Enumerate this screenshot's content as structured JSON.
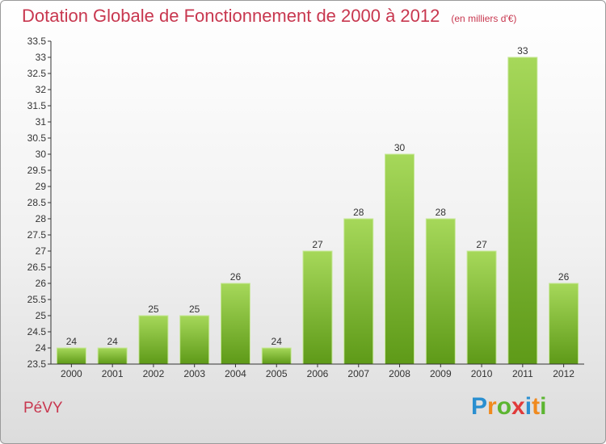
{
  "title": "Dotation Globale de Fonctionnement de 2000 à 2012",
  "subtitle": "(en milliers d'€)",
  "commune": "PéVY",
  "logo": {
    "letters": [
      "P",
      "r",
      "o",
      "x",
      "i",
      "t",
      "i"
    ],
    "colors": [
      "#2a8fd0",
      "#f08a1e",
      "#5cb531",
      "#e03a3a",
      "#2a8fd0",
      "#f08a1e",
      "#5cb531"
    ]
  },
  "chart_data": {
    "type": "bar",
    "categories": [
      "2000",
      "2001",
      "2002",
      "2003",
      "2004",
      "2005",
      "2006",
      "2007",
      "2008",
      "2009",
      "2010",
      "2011",
      "2012"
    ],
    "values": [
      24,
      24,
      25,
      25,
      26,
      24,
      27,
      28,
      30,
      28,
      27,
      33,
      26
    ],
    "title": "Dotation Globale de Fonctionnement de 2000 à 2012",
    "xlabel": "",
    "ylabel": "",
    "ylim": [
      23.5,
      33.5
    ],
    "ytick_step": 0.5,
    "yticks": [
      "23.5",
      "24",
      "24.5",
      "25",
      "25.5",
      "26",
      "26.5",
      "27",
      "27.5",
      "28",
      "28.5",
      "29",
      "29.5",
      "30",
      "30.5",
      "31",
      "31.5",
      "32",
      "32.5",
      "33",
      "33.5"
    ],
    "grid": false,
    "legend": "none",
    "bar_color": "#7ab52c"
  }
}
